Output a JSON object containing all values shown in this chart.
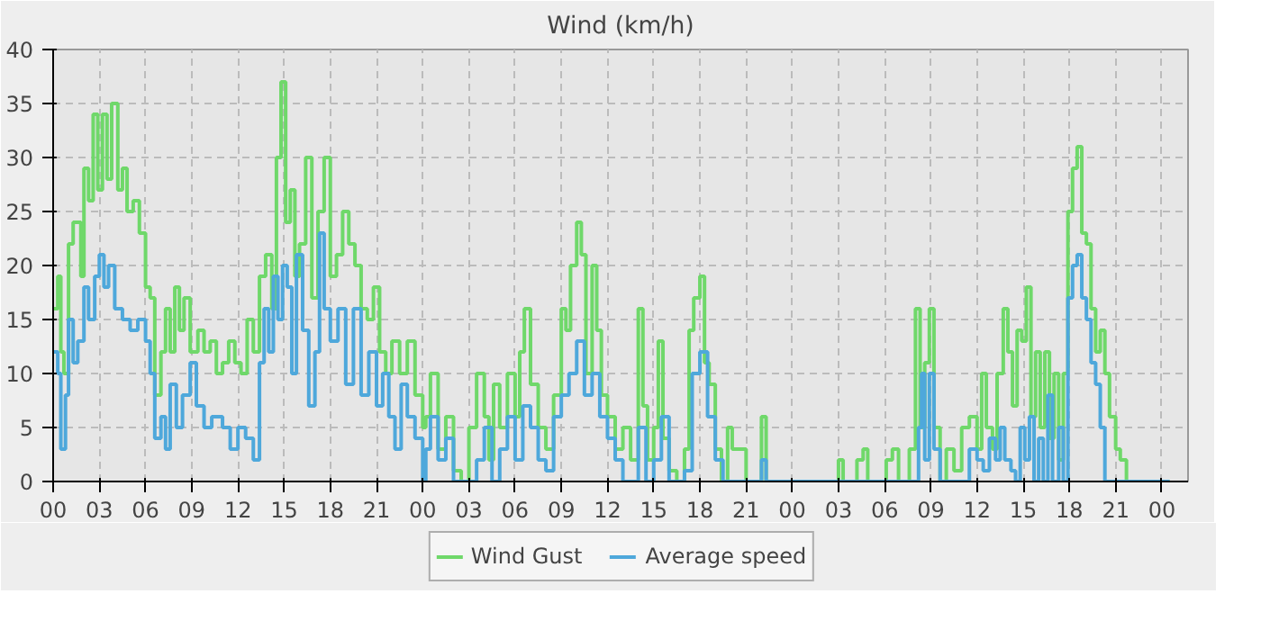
{
  "chart_data": {
    "type": "step",
    "title": "Wind (km/h)",
    "xlim": [
      0,
      73.7
    ],
    "ylim": [
      0,
      40
    ],
    "xticks": [
      {
        "value": 0,
        "label": "00"
      },
      {
        "value": 3,
        "label": "03"
      },
      {
        "value": 6,
        "label": "06"
      },
      {
        "value": 9,
        "label": "09"
      },
      {
        "value": 12,
        "label": "12"
      },
      {
        "value": 15,
        "label": "15"
      },
      {
        "value": 18,
        "label": "18"
      },
      {
        "value": 21,
        "label": "21"
      },
      {
        "value": 24,
        "label": "00"
      },
      {
        "value": 27,
        "label": "03"
      },
      {
        "value": 30,
        "label": "06"
      },
      {
        "value": 33,
        "label": "09"
      },
      {
        "value": 36,
        "label": "12"
      },
      {
        "value": 39,
        "label": "15"
      },
      {
        "value": 42,
        "label": "18"
      },
      {
        "value": 45,
        "label": "21"
      },
      {
        "value": 48,
        "label": "00"
      },
      {
        "value": 51,
        "label": "03"
      },
      {
        "value": 54,
        "label": "06"
      },
      {
        "value": 57,
        "label": "09"
      },
      {
        "value": 60,
        "label": "12"
      },
      {
        "value": 63,
        "label": "15"
      },
      {
        "value": 66,
        "label": "18"
      },
      {
        "value": 69,
        "label": "21"
      },
      {
        "value": 72,
        "label": "00"
      }
    ],
    "yticks": [
      0,
      5,
      10,
      15,
      20,
      25,
      30,
      35,
      40
    ],
    "grid": true,
    "legend": "bottom",
    "line_style": "solid",
    "series": [
      {
        "name": "Wind Gust",
        "color": "#6fd86a",
        "x": [
          0,
          0.3,
          0.5,
          0.7,
          1,
          1.3,
          1.8,
          2,
          2.3,
          2.6,
          2.9,
          3.2,
          3.5,
          3.8,
          4.2,
          4.5,
          4.8,
          5.2,
          5.6,
          6,
          6.3,
          6.6,
          7,
          7.3,
          7.6,
          7.9,
          8.2,
          8.5,
          8.9,
          9.4,
          9.8,
          10.2,
          10.6,
          11,
          11.4,
          11.8,
          12.2,
          12.6,
          13,
          13.4,
          13.8,
          14.2,
          14.5,
          14.8,
          15.1,
          15.4,
          15.7,
          16,
          16.4,
          16.8,
          17.2,
          17.6,
          18,
          18.4,
          18.8,
          19.2,
          19.6,
          20,
          20.4,
          20.8,
          21.2,
          21.6,
          22,
          22.5,
          23,
          23.5,
          24,
          24.2,
          24.5,
          25,
          25.5,
          26,
          26.5,
          27,
          27.5,
          28,
          28.3,
          28.6,
          29,
          29.5,
          30,
          30.3,
          30.6,
          31,
          31.5,
          32,
          32.5,
          33,
          33.3,
          33.6,
          34,
          34.3,
          34.6,
          35,
          35.3,
          35.6,
          36,
          36.5,
          37,
          37.5,
          38,
          38.3,
          38.6,
          39,
          39.3,
          39.6,
          40,
          40.5,
          41,
          41.3,
          41.6,
          42,
          42.3,
          42.6,
          43,
          43.4,
          43.8,
          44.1,
          45,
          46,
          46.3,
          51,
          51.3,
          52.2,
          52.6,
          52.9,
          54.1,
          54.5,
          54.9,
          55.6,
          56,
          56.3,
          56.6,
          56.9,
          57.2,
          57.6,
          58,
          58.5,
          59,
          59.5,
          60,
          60.3,
          60.6,
          61,
          61.3,
          61.7,
          62,
          62.3,
          62.6,
          62.9,
          63.2,
          63.5,
          63.8,
          64.1,
          64.4,
          64.7,
          65,
          65.3,
          65.6,
          65.9,
          66.2,
          66.5,
          66.8,
          67.1,
          67.4,
          67.7,
          68,
          68.3,
          68.6,
          69,
          69.3,
          69.7,
          72.5
        ],
        "values": [
          16,
          19,
          12,
          10,
          22,
          24,
          19,
          29,
          26,
          34,
          27,
          34,
          28,
          35,
          27,
          29,
          25,
          26,
          23,
          18,
          17,
          8,
          12,
          16,
          12,
          18,
          14,
          17,
          12,
          14,
          12,
          13,
          10,
          11,
          13,
          11,
          10,
          15,
          12,
          19,
          21,
          16,
          30,
          37,
          24,
          27,
          19,
          22,
          30,
          17,
          25,
          30,
          19,
          21,
          25,
          22,
          20,
          16,
          15,
          18,
          12,
          10,
          13,
          10,
          13,
          8,
          5,
          6,
          10,
          3,
          6,
          1,
          0,
          5,
          10,
          6,
          2,
          9,
          5,
          10,
          6,
          12,
          16,
          9,
          5,
          3,
          8,
          16,
          14,
          20,
          24,
          21,
          10,
          20,
          14,
          8,
          6,
          3,
          5,
          2,
          16,
          7,
          2,
          5,
          13,
          4,
          1,
          0,
          3,
          14,
          17,
          19,
          11,
          9,
          3,
          0,
          5,
          3,
          0,
          6,
          0,
          2,
          0,
          2,
          3,
          0,
          2,
          3,
          0,
          3,
          16,
          5,
          11,
          16,
          5,
          0,
          3,
          1,
          5,
          6,
          3,
          10,
          5,
          3,
          10,
          16,
          12,
          7,
          14,
          13,
          18,
          6,
          12,
          5,
          12,
          4,
          10,
          2,
          10,
          25,
          29,
          31,
          23,
          22,
          16,
          12,
          14,
          10,
          6,
          3,
          2,
          0,
          0
        ]
      },
      {
        "name": "Average speed",
        "color": "#4ea8db",
        "x": [
          0,
          0.3,
          0.5,
          0.8,
          1,
          1.3,
          1.6,
          2,
          2.3,
          2.7,
          3,
          3.3,
          3.6,
          4,
          4.5,
          5,
          5.5,
          6,
          6.3,
          6.6,
          7,
          7.3,
          7.6,
          8,
          8.4,
          8.9,
          9.3,
          9.8,
          10.3,
          11,
          11.5,
          12,
          12.5,
          13,
          13.4,
          13.7,
          14,
          14.3,
          14.6,
          14.9,
          15.2,
          15.5,
          15.8,
          16.2,
          16.6,
          17,
          17.3,
          17.6,
          18,
          18.5,
          19,
          19.5,
          20,
          20.5,
          21,
          21.4,
          21.8,
          22.2,
          22.6,
          23,
          23.5,
          24,
          24.2,
          24.5,
          25,
          25.5,
          26,
          27.5,
          28,
          28.5,
          29,
          29.5,
          30,
          30.5,
          31,
          31.5,
          32,
          32.5,
          33,
          33.5,
          34,
          34.5,
          35,
          35.5,
          36,
          36.5,
          37,
          38,
          38.5,
          39,
          39.5,
          40,
          41,
          41.5,
          42,
          42.5,
          43,
          43.5,
          46,
          46.3,
          56.2,
          56.4,
          56.6,
          56.9,
          57.2,
          57.6,
          59.5,
          60,
          60.4,
          60.8,
          61.2,
          61.5,
          61.8,
          62.2,
          62.5,
          62.8,
          63.1,
          63.4,
          63.7,
          64,
          64.3,
          64.6,
          64.9,
          65.3,
          65.6,
          65.9,
          66.2,
          66.5,
          66.8,
          67.1,
          67.4,
          67.7,
          68,
          68.3,
          72.5
        ],
        "values": [
          12,
          10,
          3,
          8,
          15,
          11,
          13,
          18,
          15,
          19,
          21,
          18,
          20,
          16,
          15,
          14,
          15,
          13,
          10,
          4,
          6,
          3,
          9,
          5,
          8,
          11,
          7,
          5,
          6,
          5,
          3,
          5,
          4,
          2,
          11,
          16,
          12,
          19,
          15,
          20,
          18,
          10,
          21,
          14,
          7,
          12,
          23,
          16,
          13,
          16,
          9,
          16,
          8,
          12,
          7,
          10,
          6,
          3,
          9,
          6,
          4,
          0,
          3,
          6,
          2,
          4,
          0,
          2,
          5,
          0,
          3,
          6,
          2,
          7,
          5,
          2,
          1,
          6,
          8,
          10,
          13,
          8,
          10,
          6,
          4,
          2,
          0,
          5,
          0,
          2,
          6,
          0,
          1,
          10,
          12,
          6,
          2,
          0,
          2,
          0,
          5,
          10,
          2,
          10,
          3,
          0,
          3,
          2,
          1,
          4,
          2,
          5,
          2,
          1,
          0,
          5,
          2,
          6,
          0,
          4,
          0,
          8,
          0,
          5,
          0,
          17,
          20,
          21,
          17,
          15,
          11,
          9,
          5,
          0,
          0
        ]
      }
    ]
  }
}
